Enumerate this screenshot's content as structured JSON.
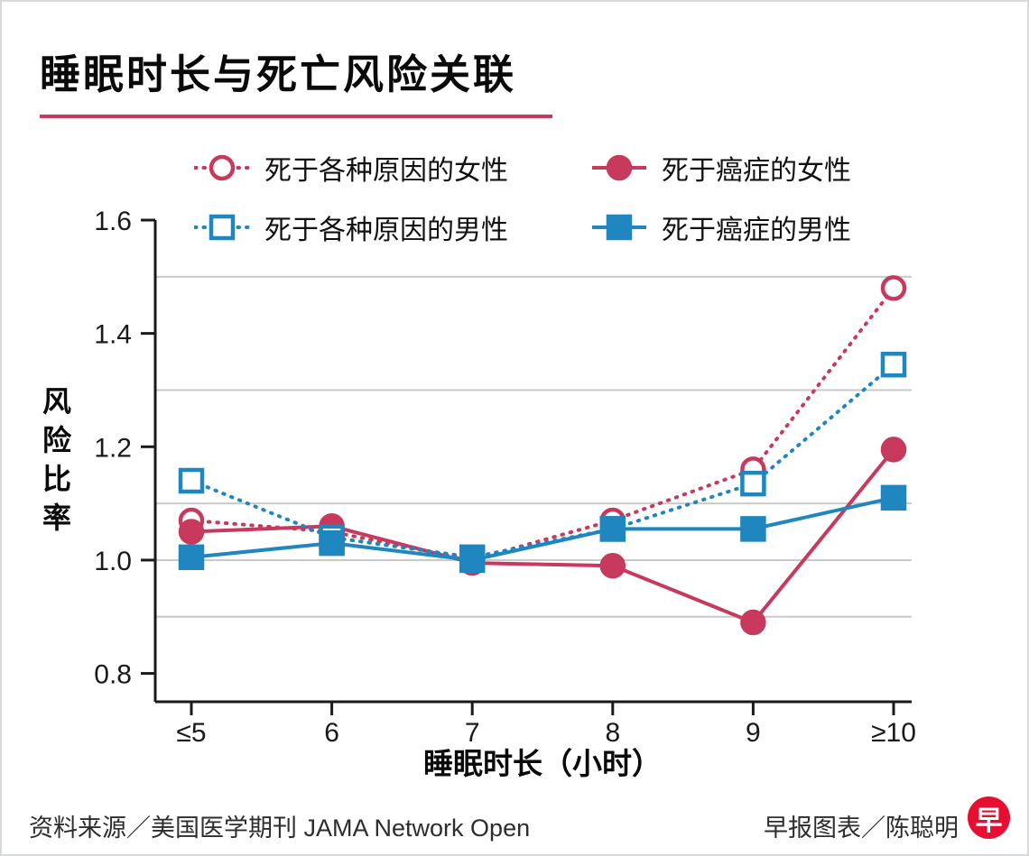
{
  "page": {
    "title": "睡眠时长与死亡风险关联",
    "source_note": "资料来源／美国医学期刊 JAMA Network Open",
    "credit": "早报图表／陈聪明",
    "logo_char": "早"
  },
  "colors": {
    "female": "#c73a5e",
    "male": "#1f86c0",
    "grid": "#c9c9c9",
    "axis": "#1a1a1a",
    "logo": "#e60f32"
  },
  "chart_data": {
    "type": "line",
    "x": [
      "≤5",
      "6",
      "7",
      "8",
      "9",
      "≥10"
    ],
    "xlabel": "睡眠时长（小时）",
    "ylabel": "风险比率",
    "ylim": [
      0.75,
      1.6
    ],
    "yticks": [
      0.8,
      1.0,
      1.2,
      1.4,
      1.6
    ],
    "gridlines": [
      0.9,
      1.0,
      1.1,
      1.3,
      1.5
    ],
    "grid": true,
    "legend_position": "top",
    "series": [
      {
        "name": "死于各种原因的女性",
        "color": "#c73a5e",
        "line": "dashed",
        "marker": "circle-open",
        "values": [
          1.07,
          1.05,
          1.0,
          1.07,
          1.16,
          1.48
        ]
      },
      {
        "name": "死于癌症的女性",
        "color": "#c73a5e",
        "line": "solid",
        "marker": "circle-filled",
        "values": [
          1.05,
          1.06,
          0.995,
          0.99,
          0.89,
          1.195
        ]
      },
      {
        "name": "死于各种原因的男性",
        "color": "#1f86c0",
        "line": "dashed",
        "marker": "square-open",
        "values": [
          1.14,
          1.04,
          1.005,
          1.055,
          1.135,
          1.345
        ]
      },
      {
        "name": "死于癌症的男性",
        "color": "#1f86c0",
        "line": "solid",
        "marker": "square-filled",
        "values": [
          1.005,
          1.03,
          1.0,
          1.055,
          1.055,
          1.11
        ]
      }
    ]
  }
}
